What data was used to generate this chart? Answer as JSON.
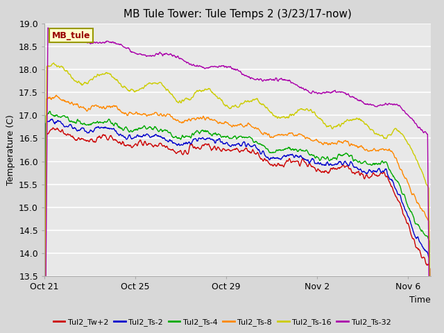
{
  "title": "MB Tule Tower: Tule Temps 2 (3/23/17-now)",
  "xlabel": "Time",
  "ylabel": "Temperature (C)",
  "fig_bg_color": "#d8d8d8",
  "plot_bg_color": "#e8e8e8",
  "ylim": [
    13.5,
    19.0
  ],
  "yticks": [
    13.5,
    14.0,
    14.5,
    15.0,
    15.5,
    16.0,
    16.5,
    17.0,
    17.5,
    18.0,
    18.5,
    19.0
  ],
  "xlim": [
    0,
    17
  ],
  "xtick_pos": [
    0,
    4,
    8,
    12,
    16
  ],
  "xtick_labels": [
    "Oct 21",
    "Oct 25",
    "Oct 29",
    "Nov 2",
    "Nov 6"
  ],
  "legend_label": "MB_tule",
  "series": [
    {
      "name": "Tul2_Tw+2",
      "color": "#cc0000"
    },
    {
      "name": "Tul2_Ts-2",
      "color": "#0000cc"
    },
    {
      "name": "Tul2_Ts-4",
      "color": "#00aa00"
    },
    {
      "name": "Tul2_Ts-8",
      "color": "#ff8800"
    },
    {
      "name": "Tul2_Ts-16",
      "color": "#cccc00"
    },
    {
      "name": "Tul2_Ts-32",
      "color": "#aa00aa"
    }
  ],
  "title_fontsize": 11,
  "axis_label_fontsize": 9,
  "tick_fontsize": 9,
  "legend_fontsize": 8,
  "linewidth": 1.0
}
